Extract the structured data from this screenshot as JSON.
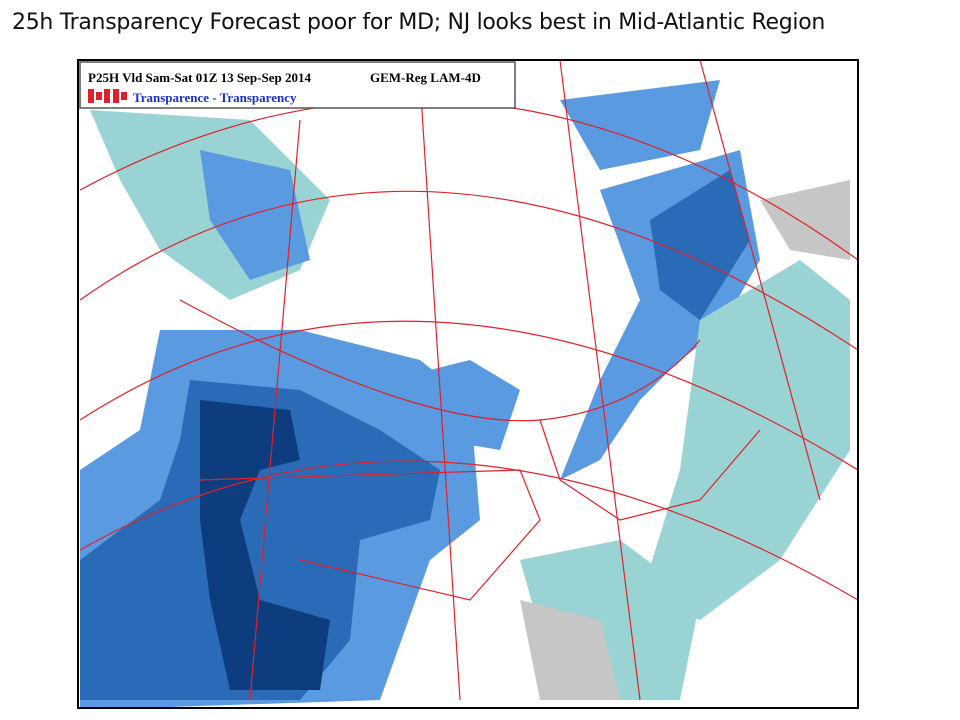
{
  "title": "25h Transparency Forecast poor for MD; NJ looks best in Mid-Atlantic Region",
  "map": {
    "header": {
      "product": "P25H Vld Sam-Sat 01Z 13 Sep-Sep 2014",
      "model": "GEM-Reg LAM-4D",
      "legend": "Transparence - Transparency"
    }
  }
}
